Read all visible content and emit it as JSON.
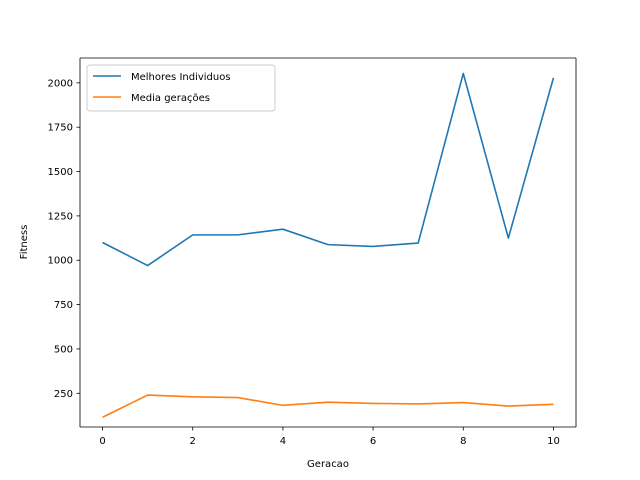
{
  "chart_data": {
    "type": "line",
    "title": "",
    "xlabel": "Geracao",
    "ylabel": "Fitness",
    "x": [
      0,
      1,
      2,
      3,
      4,
      5,
      6,
      7,
      8,
      9,
      10
    ],
    "xlim": [
      -0.5,
      10.5
    ],
    "ylim": [
      60,
      2140
    ],
    "xticks": [
      0,
      2,
      4,
      6,
      8,
      10
    ],
    "yticks": [
      250,
      500,
      750,
      1000,
      1250,
      1500,
      1750,
      2000
    ],
    "grid": false,
    "legend_position": "upper-left",
    "series": [
      {
        "name": "Melhores Individuos",
        "color": "#1f77b4",
        "values": [
          1100,
          970,
          1143,
          1143,
          1175,
          1088,
          1078,
          1097,
          2053,
          1125,
          2028
        ]
      },
      {
        "name": "Media gerações",
        "color": "#ff7f0e",
        "values": [
          115,
          240,
          230,
          226,
          182,
          200,
          193,
          190,
          198,
          178,
          188
        ]
      }
    ]
  }
}
